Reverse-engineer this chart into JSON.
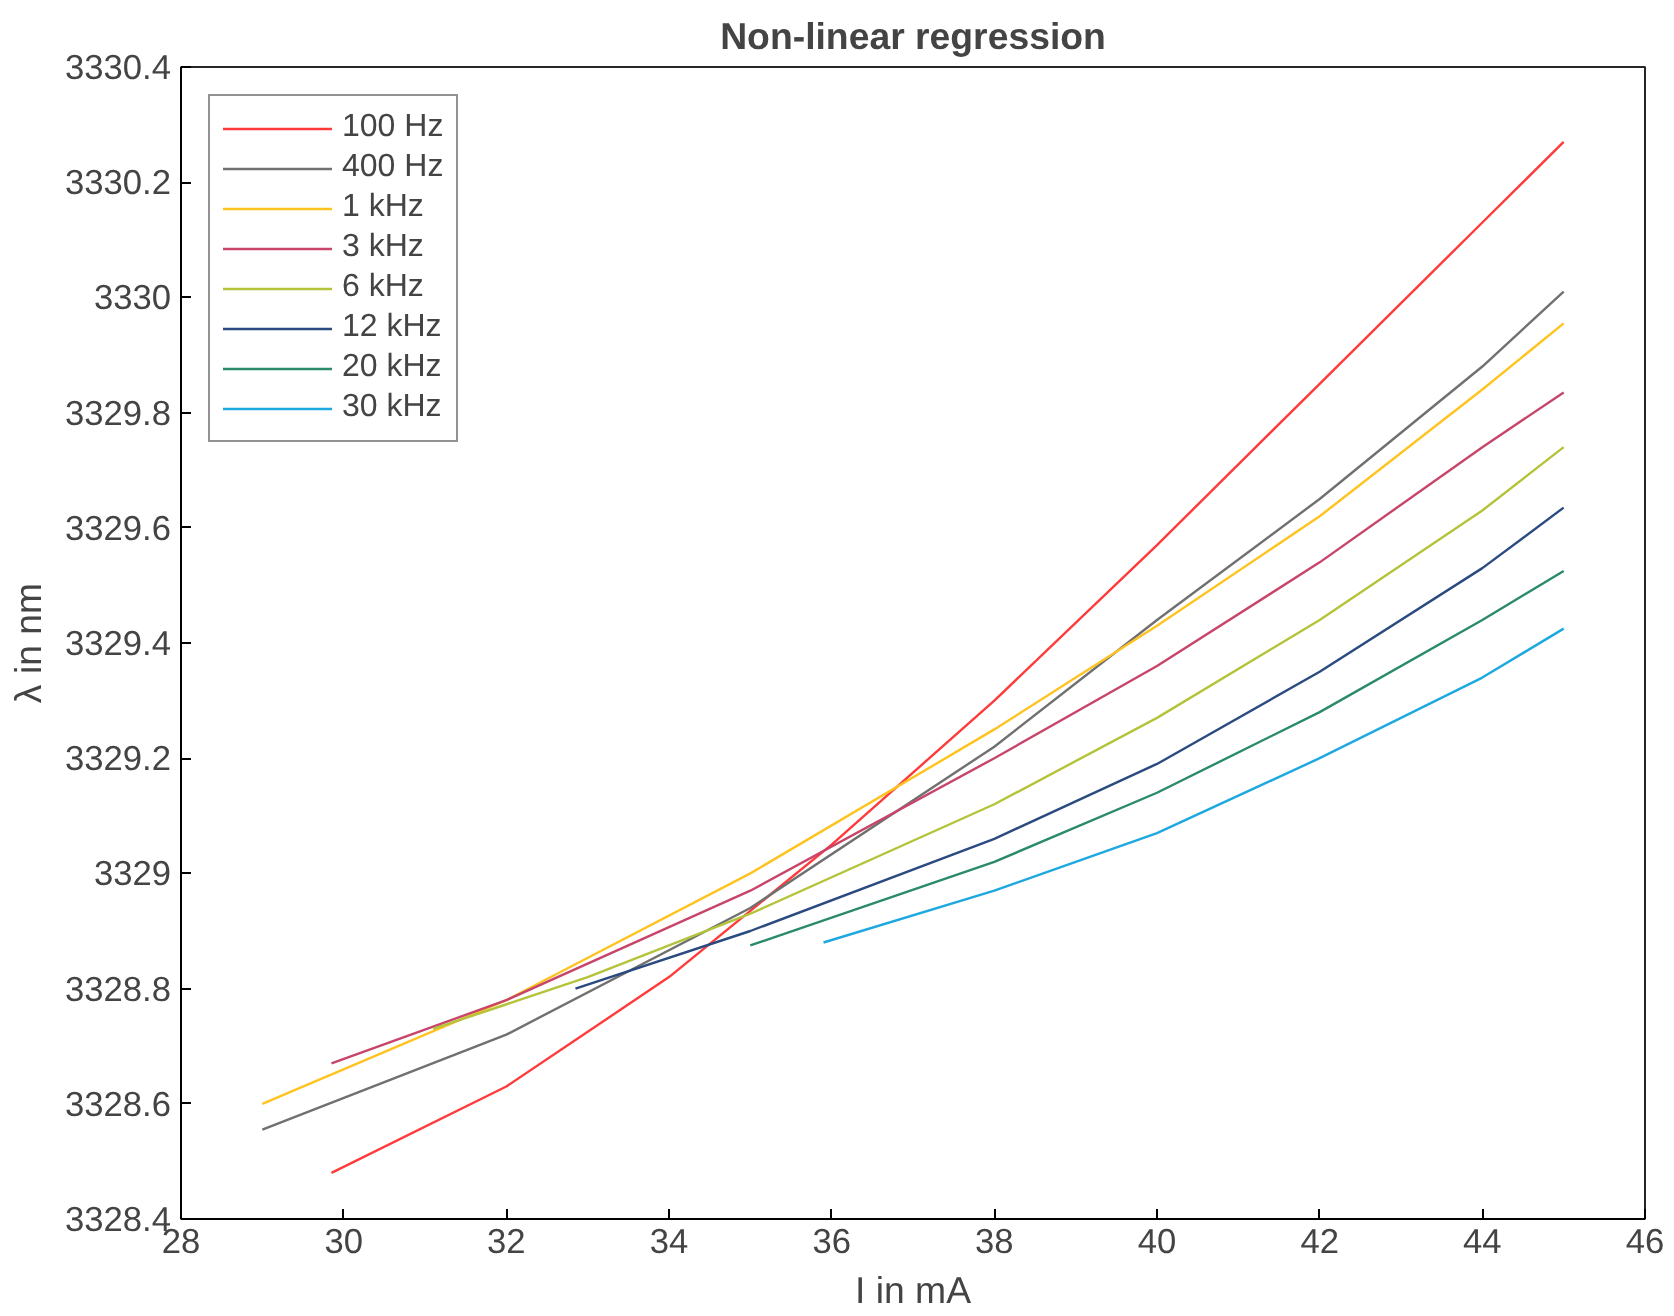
{
  "chart_data": {
    "type": "line",
    "title": "Non-linear regression",
    "xlabel": "I in mA",
    "ylabel": "λ in nm",
    "xlim": [
      28,
      46
    ],
    "xticks": [
      28,
      30,
      32,
      34,
      36,
      38,
      40,
      42,
      44,
      46
    ],
    "ylim": [
      3328.4,
      3330.4
    ],
    "yticks": [
      3328.4,
      3328.6,
      3328.8,
      3329,
      3329.2,
      3329.4,
      3329.6,
      3329.8,
      3330,
      3330.2,
      3330.4
    ],
    "grid": false,
    "legend": "top left",
    "marker": "none",
    "line_style": "solid",
    "series": [
      {
        "name": "100 Hz",
        "color": "#ff3a3a",
        "x": [
          29.85,
          32,
          34,
          36,
          38,
          40,
          42,
          44,
          45
        ],
        "values": [
          3328.48,
          3328.63,
          3328.82,
          3329.05,
          3329.3,
          3329.57,
          3329.85,
          3330.13,
          3330.27
        ]
      },
      {
        "name": "400 Hz",
        "color": "#707070",
        "x": [
          29,
          32,
          35,
          38,
          40,
          42,
          44,
          45
        ],
        "values": [
          3328.555,
          3328.72,
          3328.94,
          3329.22,
          3329.44,
          3329.65,
          3329.88,
          3330.01
        ]
      },
      {
        "name": "1 kHz",
        "color": "#ffc31f",
        "x": [
          29,
          32,
          35,
          38,
          40,
          42,
          44,
          45
        ],
        "values": [
          3328.6,
          3328.78,
          3329.0,
          3329.25,
          3329.43,
          3329.62,
          3329.84,
          3329.955
        ]
      },
      {
        "name": "3 kHz",
        "color": "#c8456a",
        "x": [
          29.85,
          32,
          35,
          38,
          40,
          42,
          44,
          45
        ],
        "values": [
          3328.67,
          3328.78,
          3328.97,
          3329.2,
          3329.36,
          3329.54,
          3329.74,
          3329.835
        ]
      },
      {
        "name": "6 kHz",
        "color": "#b5c33a",
        "x": [
          31.1,
          33,
          35,
          38,
          40,
          42,
          44,
          45
        ],
        "values": [
          3328.73,
          3328.82,
          3328.93,
          3329.12,
          3329.27,
          3329.44,
          3329.63,
          3329.74
        ]
      },
      {
        "name": "12 kHz",
        "color": "#2a4a80",
        "x": [
          32.85,
          35,
          38,
          40,
          42,
          44,
          45
        ],
        "values": [
          3328.8,
          3328.9,
          3329.06,
          3329.19,
          3329.35,
          3329.53,
          3329.635
        ]
      },
      {
        "name": "20 kHz",
        "color": "#2a8a6a",
        "x": [
          35,
          38,
          40,
          42,
          44,
          45
        ],
        "values": [
          3328.875,
          3329.02,
          3329.14,
          3329.28,
          3329.44,
          3329.525
        ]
      },
      {
        "name": "30 kHz",
        "color": "#1ea8e0",
        "x": [
          35.9,
          38,
          40,
          42,
          44,
          45
        ],
        "values": [
          3328.88,
          3328.97,
          3329.07,
          3329.2,
          3329.34,
          3329.425
        ]
      }
    ]
  }
}
